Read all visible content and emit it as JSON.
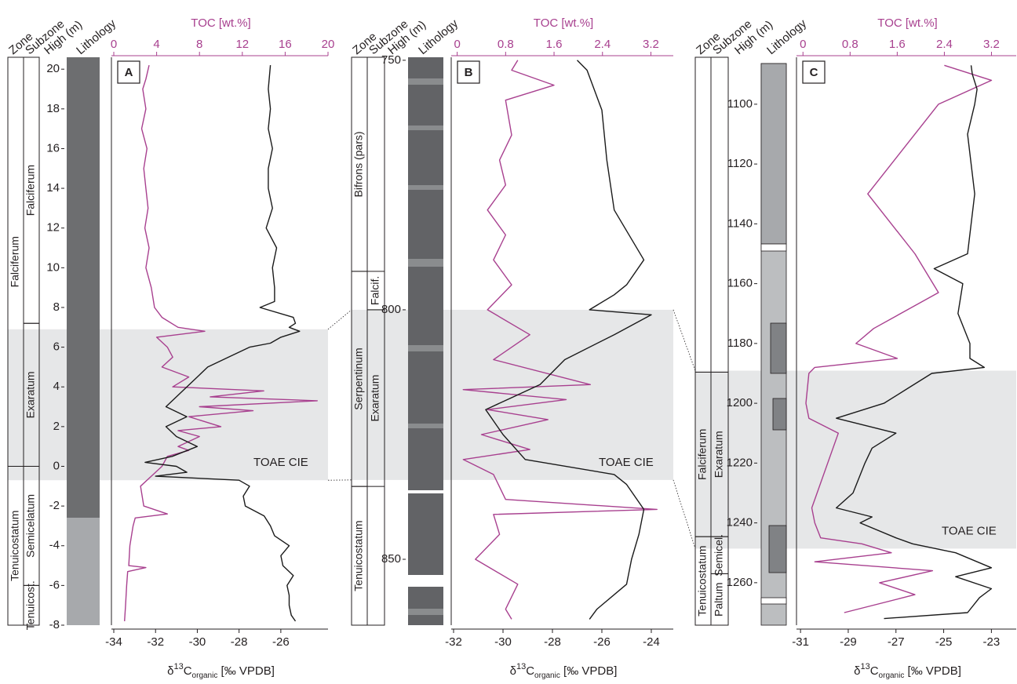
{
  "chart_data": [
    {
      "type": "line",
      "panel_label": "A",
      "column_headers": [
        "Zone",
        "Subzone",
        "High (m)",
        "Lithology"
      ],
      "x2_label": "TOC [wt.%]",
      "x_label": {
        "symbol": "δ",
        "sup": "13",
        "element": "C",
        "sub": "organic",
        "rest": " [‰ VPDB]"
      },
      "xlim": [
        -34,
        -23.74
      ],
      "xticks": [
        -34,
        -32,
        -30,
        -28,
        -26
      ],
      "x2lim": [
        0,
        20
      ],
      "x2ticks": [
        0,
        4,
        8,
        12,
        16,
        20
      ],
      "ylim": [
        -8,
        20.6
      ],
      "yticks": [
        -8,
        -6,
        -4,
        -2,
        0,
        2,
        4,
        6,
        8,
        10,
        12,
        14,
        16,
        18,
        20
      ],
      "zones": [
        {
          "label": "Falciferum",
          "from": 0,
          "to": 20.6
        },
        {
          "label": "Tenuicostatum",
          "from": -8,
          "to": 0
        }
      ],
      "subzones": [
        {
          "label": "Falciferum",
          "from": 7.2,
          "to": 20.6
        },
        {
          "label": "Exaratum",
          "from": 0,
          "to": 7.2
        },
        {
          "label": "Semicelatum",
          "from": -6,
          "to": 0
        },
        {
          "label": "Tenuicost.",
          "from": -8,
          "to": -6
        }
      ],
      "cie": {
        "label": "TOAE CIE",
        "from": -0.7,
        "to": 6.9
      },
      "series": [
        {
          "axis": "x2",
          "color": "#a8408f",
          "depth": [
            20.2,
            19.5,
            19,
            18,
            17,
            16,
            15,
            14,
            13,
            12,
            11,
            10,
            9,
            8,
            7.5,
            7,
            6.8,
            6.5,
            6,
            5.5,
            5,
            4.5,
            4,
            3.8,
            3.5,
            3.3,
            3.0,
            2.8,
            2.5,
            2,
            1.8,
            1.5,
            1,
            0.8,
            0.5,
            0,
            -0.5,
            -1,
            -2,
            -2.4,
            -2.6,
            -3,
            -4,
            -5,
            -5.1,
            -5.3,
            -6,
            -7,
            -7.8
          ],
          "values": [
            3.3,
            3.0,
            2.7,
            3.0,
            2.6,
            3.1,
            2.8,
            3.0,
            3.2,
            2.9,
            3.3,
            3.0,
            3.5,
            3.8,
            4.5,
            6.0,
            8.5,
            4.0,
            5.0,
            5.5,
            4.5,
            7.0,
            5.5,
            14.0,
            9.0,
            19.0,
            8.0,
            13.0,
            7.0,
            10.0,
            6.0,
            8.0,
            6.0,
            7.0,
            5.0,
            4.5,
            3.5,
            2.5,
            2.8,
            5.0,
            2.0,
            1.8,
            1.5,
            1.4,
            3.0,
            1.3,
            1.2,
            1.1,
            1.0
          ]
        },
        {
          "axis": "x",
          "color": "#1a1a1a",
          "depth": [
            20.2,
            19,
            18,
            17,
            16,
            15,
            14,
            13,
            12,
            11,
            10,
            9,
            8.3,
            8,
            7.5,
            7.2,
            7,
            6.8,
            6.5,
            6.2,
            6,
            5.5,
            5,
            4.5,
            4,
            3.5,
            3,
            2.5,
            2,
            1.5,
            1,
            0.5,
            0.2,
            0,
            -0.3,
            -0.5,
            -0.7,
            -1,
            -1.5,
            -2,
            -2.5,
            -3,
            -3.5,
            -4,
            -4.5,
            -5,
            -5.5,
            -6,
            -6.5,
            -7,
            -7.5,
            -7.8
          ],
          "values": [
            -26.5,
            -26.6,
            -26.5,
            -26.6,
            -26.4,
            -26.6,
            -26.6,
            -26.4,
            -26.7,
            -26.2,
            -26.4,
            -26.3,
            -26.3,
            -27.0,
            -25.4,
            -25.3,
            -25.6,
            -25.1,
            -26.0,
            -26.5,
            -27.5,
            -28.5,
            -29.5,
            -30.0,
            -30.5,
            -31.0,
            -31.5,
            -30.5,
            -31.5,
            -31.0,
            -30.0,
            -31.2,
            -32.5,
            -31.0,
            -30.5,
            -32.0,
            -28.0,
            -27.5,
            -27.8,
            -27.7,
            -26.8,
            -26.5,
            -26.3,
            -25.6,
            -26.0,
            -25.9,
            -25.4,
            -25.7,
            -25.6,
            -25.6,
            -25.5,
            -25.3
          ]
        }
      ]
    },
    {
      "type": "line",
      "panel_label": "B",
      "column_headers": [
        "Zone",
        "Subzone",
        "High (m)",
        "Lithology"
      ],
      "x2_label": "TOC [wt.%]",
      "x_label": {
        "symbol": "δ",
        "sup": "13",
        "element": "C",
        "sub": "organic",
        "rest": " [‰ VPDB]"
      },
      "xlim": [
        -32,
        -23.11
      ],
      "xticks": [
        -32,
        -30,
        -28,
        -26,
        -24
      ],
      "x2lim": [
        -0.06,
        3.57
      ],
      "x2ticks": [
        0,
        0.8,
        1.6,
        2.4,
        3.2
      ],
      "ylim": [
        863.2,
        749.4
      ],
      "yticks": [
        750,
        800,
        850
      ],
      "zones": [
        {
          "label": "Bifrons (pars)",
          "from": 749.4,
          "to": 792.3
        },
        {
          "label": "Serpentinum",
          "from": 792.3,
          "to": 835.4
        },
        {
          "label": "Tenuicostatum",
          "from": 835.4,
          "to": 863.2
        }
      ],
      "subzones": [
        {
          "label": "Falcif.",
          "from": 792.3,
          "to": 800
        },
        {
          "label": "Exaratum",
          "from": 800,
          "to": 835.4
        }
      ],
      "cie": {
        "label": "TOAE CIE",
        "from": 800,
        "to": 834.1
      },
      "series": [
        {
          "axis": "x2",
          "color": "#a8408f",
          "depth": [
            750,
            752,
            755,
            758,
            765,
            770,
            775,
            780,
            785,
            790,
            795,
            800,
            805,
            810,
            815,
            816,
            818,
            820,
            822,
            825,
            828,
            830,
            833,
            838,
            840,
            841,
            845,
            850,
            855,
            860,
            862
          ],
          "values": [
            1.0,
            0.9,
            1.6,
            0.8,
            0.9,
            0.7,
            0.8,
            0.5,
            0.8,
            0.6,
            0.9,
            0.5,
            1.2,
            0.6,
            2.2,
            0.1,
            1.8,
            0.5,
            1.5,
            0.4,
            1.2,
            0.1,
            0.6,
            0.8,
            3.3,
            0.6,
            0.7,
            0.3,
            1.0,
            0.8,
            0.9
          ]
        },
        {
          "axis": "x",
          "color": "#1a1a1a",
          "depth": [
            750,
            752,
            760,
            770,
            780,
            790,
            795,
            797,
            800,
            801,
            805,
            810,
            815,
            820,
            825,
            830,
            833,
            835,
            840,
            845,
            850,
            855,
            860,
            862
          ],
          "values": [
            -27.0,
            -26.6,
            -26.0,
            -25.8,
            -25.5,
            -24.3,
            -25.0,
            -25.5,
            -26.5,
            -24.0,
            -25.5,
            -27.5,
            -28.5,
            -30.7,
            -30.0,
            -29.1,
            -25.5,
            -25.0,
            -24.3,
            -24.5,
            -24.8,
            -25.0,
            -26.2,
            -26.5
          ]
        }
      ]
    },
    {
      "type": "line",
      "panel_label": "C",
      "column_headers": [
        "Zone",
        "Subzone",
        "High (m)",
        "Lithology"
      ],
      "x2_label": "TOC [wt.%]",
      "x_label": {
        "symbol": "δ",
        "sup": "13",
        "element": "C",
        "sub": "organic",
        "rest": " [‰ VPDB]"
      },
      "xlim": [
        -31.07,
        -21.96
      ],
      "xticks": [
        -31,
        -29,
        -27,
        -25,
        -23
      ],
      "x2lim": [
        -0.07,
        3.62
      ],
      "x2ticks": [
        0,
        0.8,
        1.6,
        2.4,
        3.2
      ],
      "ylim": [
        1274.2,
        1084.3
      ],
      "yticks": [
        1100,
        1120,
        1140,
        1160,
        1180,
        1200,
        1220,
        1240,
        1260
      ],
      "zones": [
        {
          "label": "Falciferum",
          "from": 1189.6,
          "to": 1244.6
        },
        {
          "label": "Tenuicostatum",
          "from": 1244.6,
          "to": 1274.2
        }
      ],
      "subzones": [
        {
          "label": "Exaratum",
          "from": 1189.6,
          "to": 1244.6
        },
        {
          "label": "Semicel.",
          "from": 1244.6,
          "to": 1257
        },
        {
          "label": "Paltum",
          "from": 1257,
          "to": 1274.2
        }
      ],
      "cie": {
        "label": "TOAE CIE",
        "from": 1189.1,
        "to": 1248.6
      },
      "series": [
        {
          "axis": "x2",
          "color": "#a8408f",
          "depth": [
            1087,
            1092,
            1100,
            1130,
            1150,
            1163,
            1175,
            1180,
            1185,
            1188,
            1190,
            1200,
            1205,
            1210,
            1235,
            1240,
            1245,
            1247,
            1250,
            1253,
            1256,
            1260,
            1264,
            1270
          ],
          "values": [
            2.4,
            3.2,
            2.3,
            1.1,
            1.9,
            2.3,
            1.2,
            0.9,
            1.6,
            0.2,
            0.1,
            0.05,
            0.1,
            0.6,
            0.15,
            0.2,
            0.3,
            1.0,
            1.5,
            0.2,
            2.2,
            1.3,
            1.9,
            0.7
          ]
        },
        {
          "axis": "x",
          "color": "#1a1a1a",
          "depth": [
            1087,
            1090,
            1095,
            1100,
            1110,
            1130,
            1150,
            1155,
            1160,
            1170,
            1180,
            1185,
            1188,
            1190,
            1195,
            1200,
            1205,
            1210,
            1215,
            1220,
            1230,
            1235,
            1238,
            1240,
            1245,
            1247,
            1250,
            1255,
            1258,
            1262,
            1265,
            1270,
            1272
          ],
          "values": [
            -23.85,
            -23.8,
            -23.6,
            -23.7,
            -24.0,
            -23.7,
            -24.0,
            -25.4,
            -24.2,
            -24.4,
            -23.9,
            -23.9,
            -23.3,
            -25.5,
            -26.5,
            -27.5,
            -29.5,
            -27.0,
            -28.0,
            -28.3,
            -28.8,
            -29.5,
            -28.0,
            -28.5,
            -27.0,
            -26.3,
            -24.5,
            -23.0,
            -24.5,
            -23.0,
            -23.5,
            -24.0,
            -27.5
          ]
        }
      ]
    }
  ]
}
